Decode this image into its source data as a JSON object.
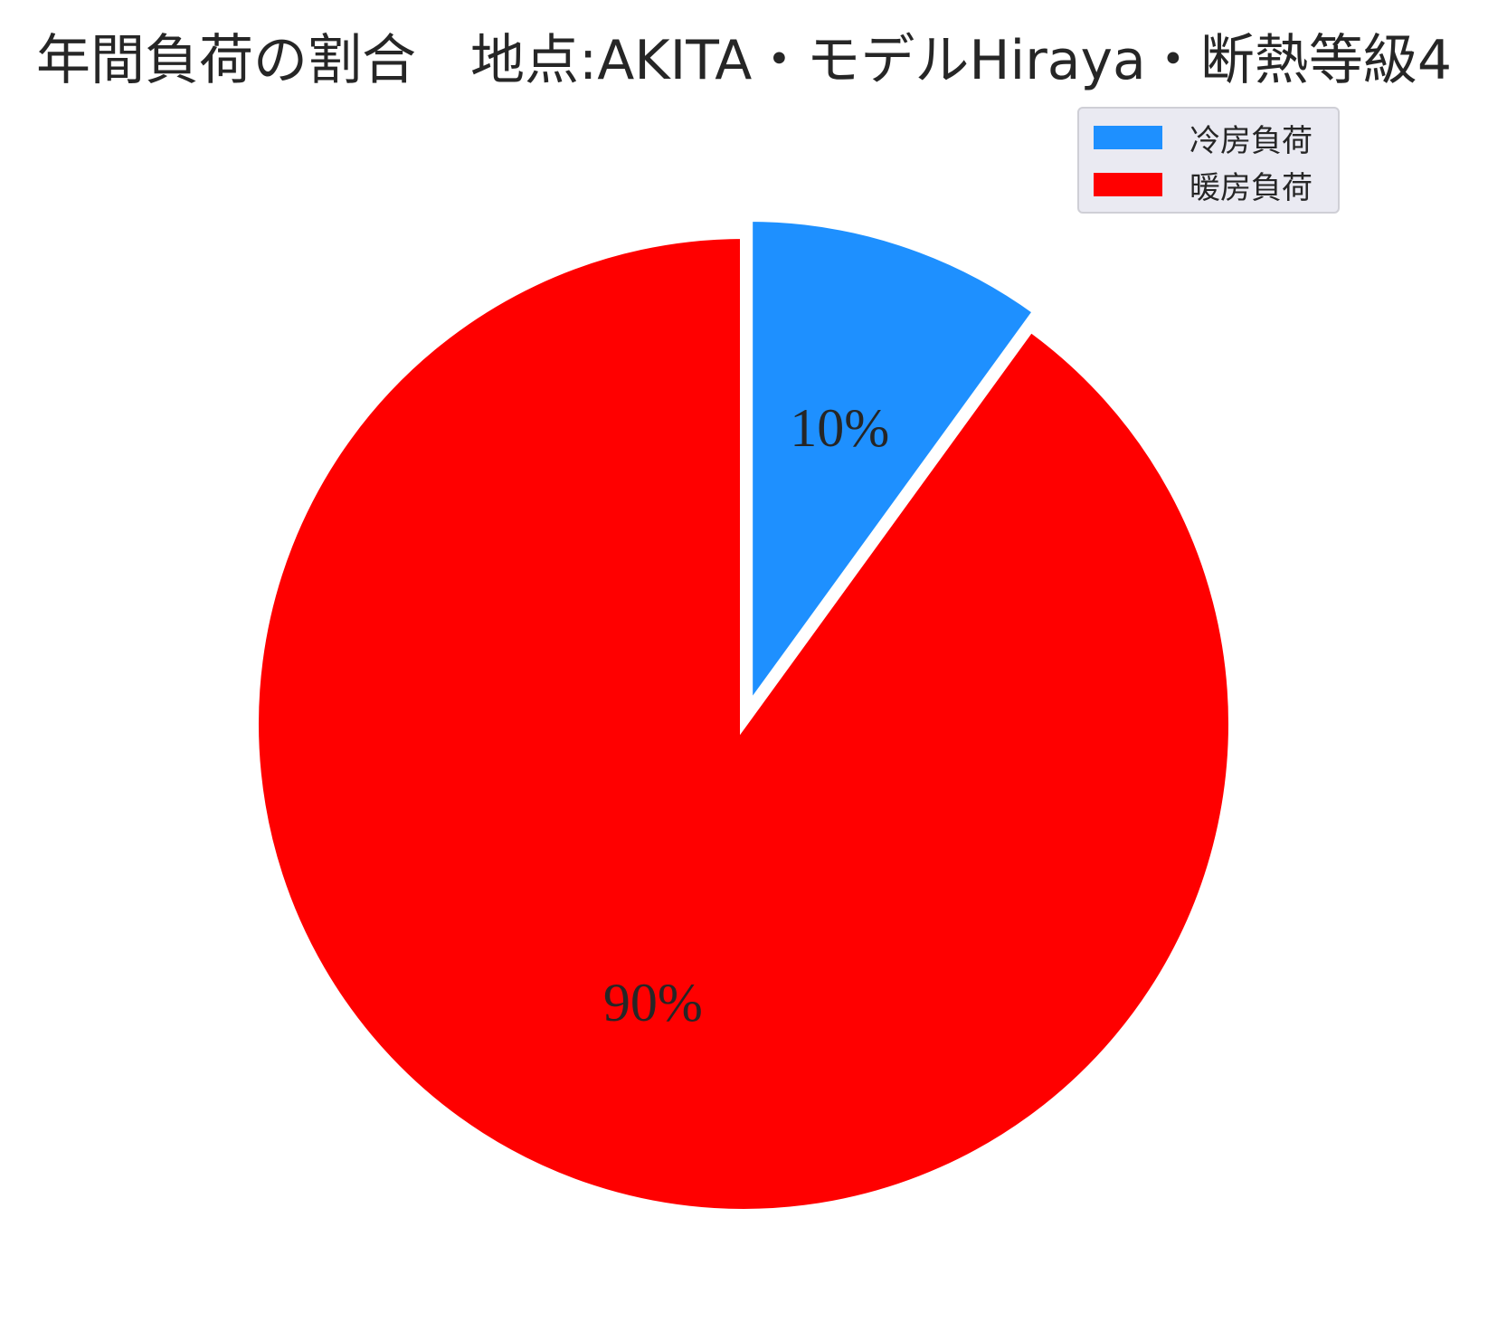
{
  "chart_data": {
    "type": "pie",
    "title": "年間負荷の割合　地点:AKITA・モデルHiraya・断熱等級4",
    "slices": [
      {
        "label": "冷房負荷",
        "value": 10,
        "value_label": "10%",
        "color": "#1e90ff",
        "exploded": true
      },
      {
        "label": "暖房負荷",
        "value": 90,
        "value_label": "90%",
        "color": "#ff0000",
        "exploded": false
      }
    ],
    "start_angle_deg": 90,
    "direction": "clockwise",
    "legend_position": "upper-right",
    "legend": [
      "冷房負荷",
      "暖房負荷"
    ]
  }
}
